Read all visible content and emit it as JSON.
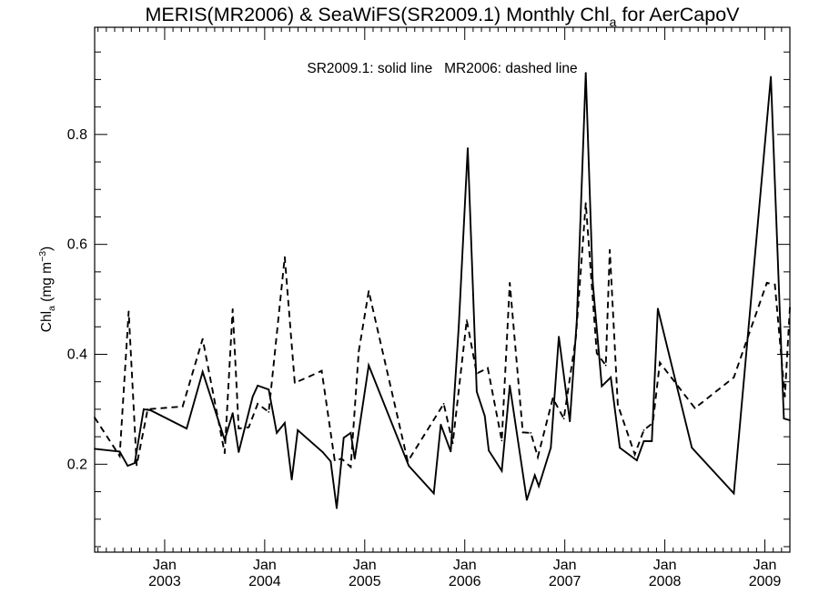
{
  "chart_data": {
    "type": "line",
    "title": {
      "prefix": "MERIS(MR2006) & SeaWiFS(SR2009.1) Monthly Chl",
      "subscript": "a",
      "suffix": " for AerCapoV"
    },
    "ylabel": {
      "prefix": "Chl",
      "subscript": "a",
      "middle": " (mg m",
      "superscript": "−3",
      "suffix": ")"
    },
    "annotation": "SR2009.1: solid line   MR2006: dashed line",
    "xlim": [
      2002.3,
      2009.25
    ],
    "ylim": [
      0.04,
      0.995
    ],
    "x_ticks": [
      {
        "value": 2003.0,
        "month": "Jan",
        "year": "2003"
      },
      {
        "value": 2004.0,
        "month": "Jan",
        "year": "2004"
      },
      {
        "value": 2005.0,
        "month": "Jan",
        "year": "2005"
      },
      {
        "value": 2006.0,
        "month": "Jan",
        "year": "2006"
      },
      {
        "value": 2007.0,
        "month": "Jan",
        "year": "2007"
      },
      {
        "value": 2008.0,
        "month": "Jan",
        "year": "2008"
      },
      {
        "value": 2009.0,
        "month": "Jan",
        "year": "2009"
      }
    ],
    "y_ticks": [
      {
        "value": 0.2,
        "label": "0.2"
      },
      {
        "value": 0.4,
        "label": "0.4"
      },
      {
        "value": 0.6,
        "label": "0.6"
      },
      {
        "value": 0.8,
        "label": "0.8"
      }
    ],
    "grid": false,
    "series": [
      {
        "name": "SR2009.1",
        "style": "solid",
        "color": "#000000",
        "points": [
          [
            2002.3,
            0.228
          ],
          [
            2002.55,
            0.223
          ],
          [
            2002.63,
            0.197
          ],
          [
            2002.7,
            0.202
          ],
          [
            2002.79,
            0.3
          ],
          [
            2002.86,
            0.298
          ],
          [
            2003.22,
            0.265
          ],
          [
            2003.38,
            0.368
          ],
          [
            2003.6,
            0.244
          ],
          [
            2003.68,
            0.293
          ],
          [
            2003.74,
            0.222
          ],
          [
            2003.88,
            0.323
          ],
          [
            2003.93,
            0.343
          ],
          [
            2004.04,
            0.336
          ],
          [
            2004.12,
            0.257
          ],
          [
            2004.2,
            0.275
          ],
          [
            2004.27,
            0.172
          ],
          [
            2004.33,
            0.262
          ],
          [
            2004.58,
            0.222
          ],
          [
            2004.66,
            0.205
          ],
          [
            2004.72,
            0.12
          ],
          [
            2004.79,
            0.248
          ],
          [
            2004.86,
            0.257
          ],
          [
            2004.9,
            0.21
          ],
          [
            2005.04,
            0.38
          ],
          [
            2005.44,
            0.197
          ],
          [
            2005.69,
            0.147
          ],
          [
            2005.76,
            0.272
          ],
          [
            2005.86,
            0.223
          ],
          [
            2005.94,
            0.45
          ],
          [
            2006.03,
            0.775
          ],
          [
            2006.12,
            0.332
          ],
          [
            2006.2,
            0.288
          ],
          [
            2006.24,
            0.225
          ],
          [
            2006.37,
            0.188
          ],
          [
            2006.45,
            0.343
          ],
          [
            2006.62,
            0.135
          ],
          [
            2006.7,
            0.18
          ],
          [
            2006.74,
            0.16
          ],
          [
            2006.86,
            0.23
          ],
          [
            2006.94,
            0.432
          ],
          [
            2007.05,
            0.278
          ],
          [
            2007.12,
            0.463
          ],
          [
            2007.21,
            0.912
          ],
          [
            2007.28,
            0.53
          ],
          [
            2007.37,
            0.342
          ],
          [
            2007.46,
            0.358
          ],
          [
            2007.55,
            0.23
          ],
          [
            2007.72,
            0.207
          ],
          [
            2007.79,
            0.242
          ],
          [
            2007.87,
            0.242
          ],
          [
            2007.93,
            0.483
          ],
          [
            2008.27,
            0.23
          ],
          [
            2008.69,
            0.147
          ],
          [
            2009.06,
            0.905
          ],
          [
            2009.19,
            0.283
          ],
          [
            2009.25,
            0.28
          ]
        ]
      },
      {
        "name": "MR2006",
        "style": "dashed",
        "color": "#000000",
        "points": [
          [
            2002.3,
            0.285
          ],
          [
            2002.55,
            0.215
          ],
          [
            2002.64,
            0.478
          ],
          [
            2002.72,
            0.198
          ],
          [
            2002.83,
            0.3
          ],
          [
            2003.18,
            0.305
          ],
          [
            2003.38,
            0.428
          ],
          [
            2003.6,
            0.22
          ],
          [
            2003.68,
            0.482
          ],
          [
            2003.74,
            0.265
          ],
          [
            2003.84,
            0.267
          ],
          [
            2003.93,
            0.31
          ],
          [
            2004.04,
            0.295
          ],
          [
            2004.2,
            0.577
          ],
          [
            2004.3,
            0.348
          ],
          [
            2004.45,
            0.36
          ],
          [
            2004.57,
            0.37
          ],
          [
            2004.7,
            0.207
          ],
          [
            2004.77,
            0.21
          ],
          [
            2004.86,
            0.195
          ],
          [
            2004.94,
            0.405
          ],
          [
            2005.04,
            0.515
          ],
          [
            2005.43,
            0.205
          ],
          [
            2005.79,
            0.31
          ],
          [
            2005.88,
            0.238
          ],
          [
            2006.02,
            0.462
          ],
          [
            2006.12,
            0.365
          ],
          [
            2006.23,
            0.375
          ],
          [
            2006.37,
            0.243
          ],
          [
            2006.45,
            0.53
          ],
          [
            2006.58,
            0.258
          ],
          [
            2006.66,
            0.257
          ],
          [
            2006.73,
            0.213
          ],
          [
            2006.88,
            0.32
          ],
          [
            2006.99,
            0.283
          ],
          [
            2007.11,
            0.43
          ],
          [
            2007.21,
            0.675
          ],
          [
            2007.32,
            0.402
          ],
          [
            2007.41,
            0.38
          ],
          [
            2007.45,
            0.59
          ],
          [
            2007.53,
            0.308
          ],
          [
            2007.7,
            0.218
          ],
          [
            2007.79,
            0.262
          ],
          [
            2007.88,
            0.275
          ],
          [
            2007.95,
            0.385
          ],
          [
            2008.3,
            0.302
          ],
          [
            2008.69,
            0.358
          ],
          [
            2009.02,
            0.53
          ],
          [
            2009.1,
            0.527
          ],
          [
            2009.2,
            0.323
          ],
          [
            2009.25,
            0.485
          ]
        ]
      }
    ]
  }
}
